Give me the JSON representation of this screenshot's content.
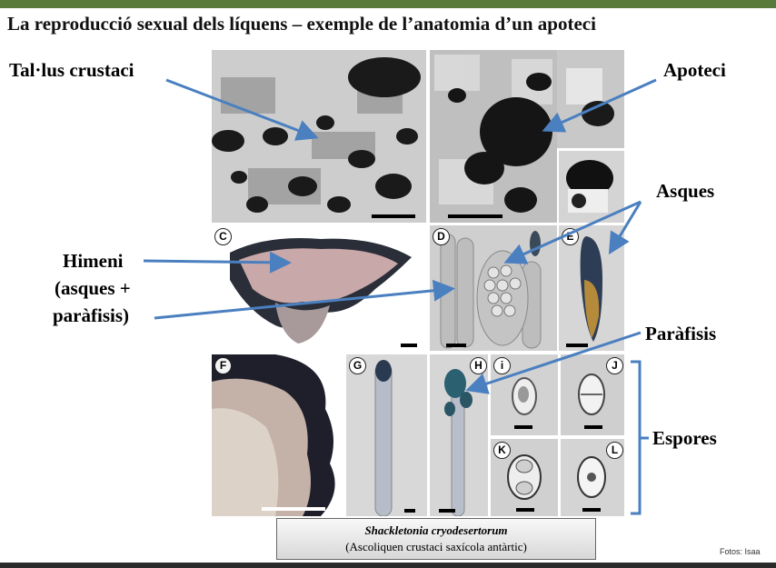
{
  "title": "La reproducció sexual dels líquens – exemple de l’anatomia d’un apoteci",
  "labels": {
    "thallus": "Tal·lus crustaci",
    "apothecium": "Apoteci",
    "asci": "Asques",
    "hymenium_line1": "Himeni",
    "hymenium_line2": "(asques +",
    "hymenium_line3": "paràfisis)",
    "paraphyses": "Paràfisis",
    "spores": "Espores"
  },
  "panels": {
    "c": "C",
    "d": "D",
    "e": "E",
    "f": "F",
    "g": "G",
    "h": "H",
    "i": "i",
    "j": "J",
    "k": "K",
    "l": "L"
  },
  "caption": {
    "species": "Shackletonia cryodesertorum",
    "description": "(Ascoliquen crustaci saxícola antàrtic)"
  },
  "credit": "Fotos: Isaa",
  "colors": {
    "arrow": "#4a7fc0",
    "accent_bar": "#5a7a3a"
  }
}
